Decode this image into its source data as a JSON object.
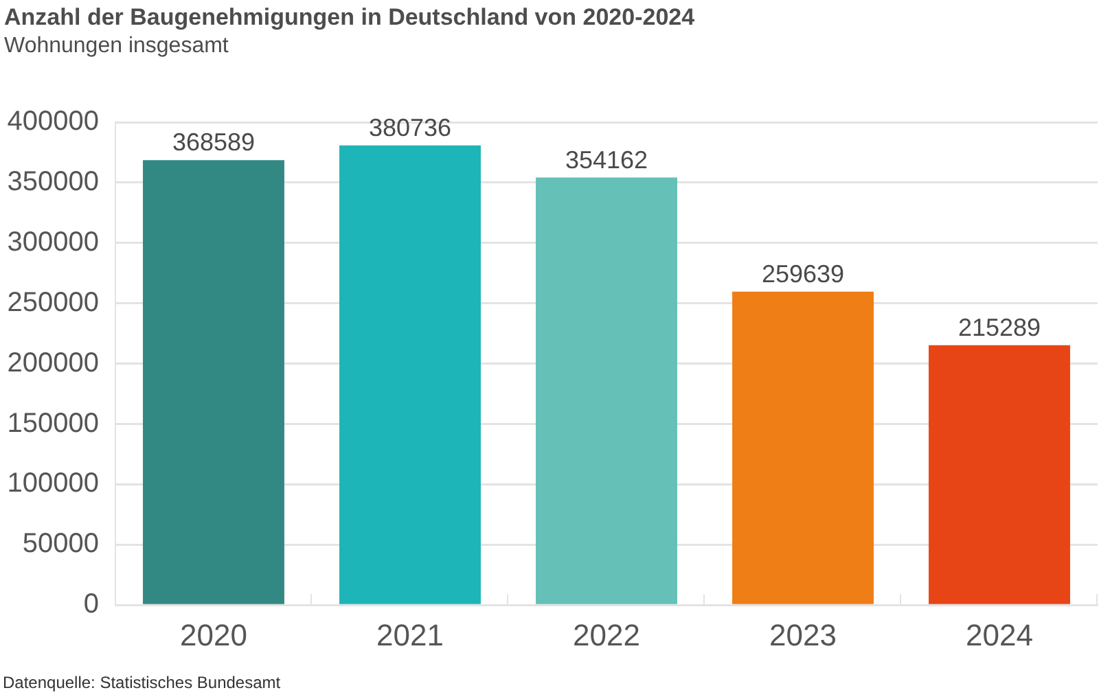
{
  "chart_data": {
    "type": "bar",
    "title": "Anzahl der Baugenehmigungen in Deutschland von 2020-2024",
    "subtitle": "Wohnungen insgesamt",
    "categories": [
      "2020",
      "2021",
      "2022",
      "2023",
      "2024"
    ],
    "values": [
      368589,
      380736,
      354162,
      259639,
      215289
    ],
    "colors": [
      "#328984",
      "#1eb5b9",
      "#65c0b7",
      "#ef7e17",
      "#e84516"
    ],
    "ylim": [
      0,
      400000
    ],
    "yticks": [
      0,
      50000,
      100000,
      150000,
      200000,
      250000,
      300000,
      350000,
      400000
    ],
    "grid": "y",
    "data_labels": true,
    "annotations": [
      "Datenquelle: Statistisches Bundesamt"
    ]
  }
}
